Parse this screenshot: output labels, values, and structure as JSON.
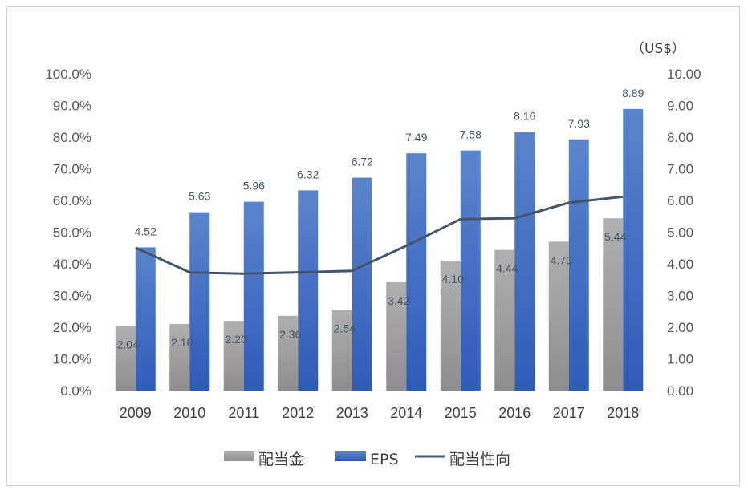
{
  "chart_data": {
    "type": "bar",
    "categories": [
      "2009",
      "2010",
      "2011",
      "2012",
      "2013",
      "2014",
      "2015",
      "2016",
      "2017",
      "2018"
    ],
    "series": [
      {
        "name": "配当金",
        "kind": "bar",
        "axis": "right",
        "values": [
          2.04,
          2.1,
          2.2,
          2.36,
          2.54,
          3.42,
          4.1,
          4.44,
          4.7,
          5.44
        ],
        "labels": [
          "2.04",
          "2.10",
          "2.20",
          "2.36",
          "2.54",
          "3.42",
          "4.10",
          "4.44",
          "4.70",
          "5.44"
        ],
        "color": "#a6a6a6"
      },
      {
        "name": "EPS",
        "kind": "bar",
        "axis": "right",
        "values": [
          4.52,
          5.63,
          5.96,
          6.32,
          6.72,
          7.49,
          7.58,
          8.16,
          7.93,
          8.89
        ],
        "labels": [
          "4.52",
          "5.63",
          "5.96",
          "6.32",
          "6.72",
          "7.49",
          "7.58",
          "8.16",
          "7.93",
          "8.89"
        ],
        "color": "#4472c4"
      },
      {
        "name": "配当性向",
        "kind": "line",
        "axis": "left",
        "values": [
          45.1,
          37.3,
          36.9,
          37.3,
          37.8,
          45.7,
          54.1,
          54.4,
          59.3,
          61.2
        ],
        "color": "#44546a"
      }
    ],
    "left_axis": {
      "ylim": [
        0,
        100
      ],
      "ticks": [
        "0.0%",
        "10.0%",
        "20.0%",
        "30.0%",
        "40.0%",
        "50.0%",
        "60.0%",
        "70.0%",
        "80.0%",
        "90.0%",
        "100.0%"
      ]
    },
    "right_axis": {
      "ylim": [
        0,
        10
      ],
      "ticks": [
        "0.00",
        "1.00",
        "2.00",
        "3.00",
        "4.00",
        "5.00",
        "6.00",
        "7.00",
        "8.00",
        "9.00",
        "10.00"
      ],
      "unit": "（US$）"
    },
    "grid": false,
    "legend": "bottom"
  }
}
